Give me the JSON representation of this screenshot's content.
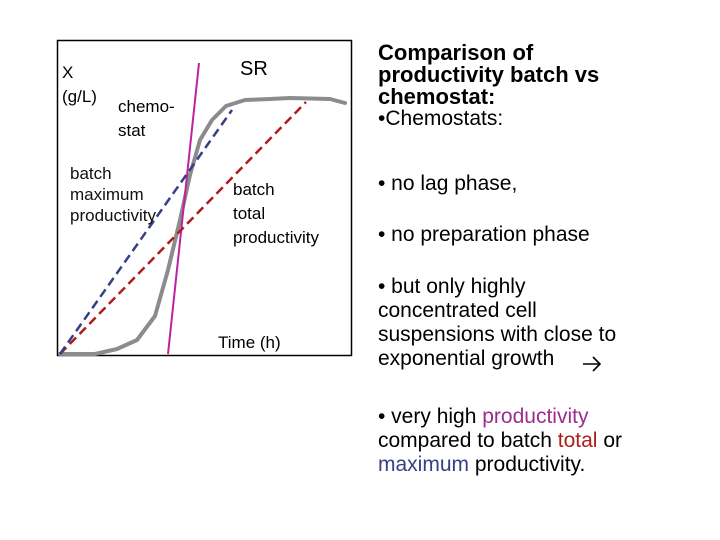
{
  "diagram": {
    "y_axis_label_1": "X",
    "y_axis_label_2": "(g/L)",
    "chemostat_label_1": "chemo-",
    "chemostat_label_2": "stat",
    "sr_label": "SR",
    "batch_max_label_1": "batch",
    "batch_max_label_2": "maximum",
    "batch_max_label_3": "productivity",
    "batch_total_label_1": "batch",
    "batch_total_label_2": "total",
    "batch_total_label_3": "productivity",
    "x_axis_label": "Time (h)",
    "colors": {
      "growth_curve": "#8c8c8c",
      "chemostat_line": "#c020a0",
      "batch_total_line": "#b01c1c",
      "batch_max_line": "#343f86"
    }
  },
  "text": {
    "heading_1": "Comparison of",
    "heading_2": "productivity batch vs",
    "heading_3": "chemostat:",
    "heading_4": "•Chemostats:",
    "bullet_lag": "• no lag phase,",
    "bullet_prep": "• no preparation phase",
    "bullet_conc_1": "• but only highly",
    "bullet_conc_2": "concentrated cell",
    "bullet_conc_3": "suspensions with close to",
    "bullet_conc_4": "exponential growth",
    "arrow_icon": "arrow-right-icon",
    "bullet_vh_prefix": "• very high ",
    "bullet_vh_productivity": "productivity",
    "bullet_vh_compared": "compared to batch ",
    "bullet_vh_total": "total",
    "bullet_vh_or": " or",
    "bullet_vh_maximum": "maximum",
    "bullet_vh_end": " productivity."
  }
}
